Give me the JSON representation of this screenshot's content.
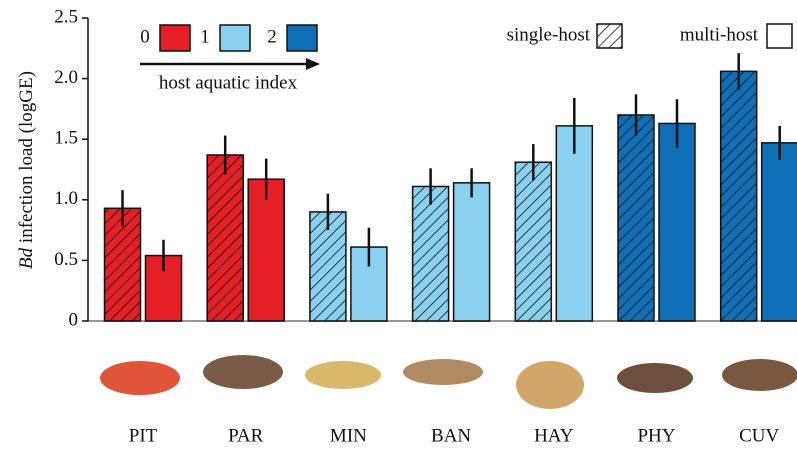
{
  "chart_data": {
    "type": "bar",
    "ylabel_italic": "Bd",
    "ylabel": "infection load (logGE)",
    "categories": [
      "PIT",
      "PAR",
      "MIN",
      "BAN",
      "HAY",
      "PHY",
      "CUV"
    ],
    "category_index": [
      0,
      0,
      1,
      1,
      1,
      2,
      2
    ],
    "aquatic_index": {
      "title": "host aquatic index",
      "levels": [
        {
          "label": "0",
          "color": "#e41f26"
        },
        {
          "label": "1",
          "color": "#8ad0ef"
        },
        {
          "label": "2",
          "color": "#0f6fb6"
        }
      ]
    },
    "series": [
      {
        "name": "single-host",
        "hatch": true,
        "values": [
          0.93,
          1.37,
          0.9,
          1.11,
          1.31,
          1.7,
          2.06
        ],
        "errors": [
          0.15,
          0.16,
          0.15,
          0.15,
          0.15,
          0.17,
          0.15
        ]
      },
      {
        "name": "multi-host",
        "hatch": false,
        "values": [
          0.54,
          1.17,
          0.61,
          1.14,
          1.61,
          1.63,
          1.47
        ],
        "errors": [
          0.13,
          0.17,
          0.16,
          0.12,
          0.23,
          0.2,
          0.14
        ]
      }
    ],
    "ylim": [
      0,
      2.5
    ],
    "yticks": [
      0,
      0.5,
      {
        "value": 1,
        "label": "1.0"
      },
      1.5,
      {
        "value": 2,
        "label": "2.0"
      },
      2.5
    ]
  }
}
